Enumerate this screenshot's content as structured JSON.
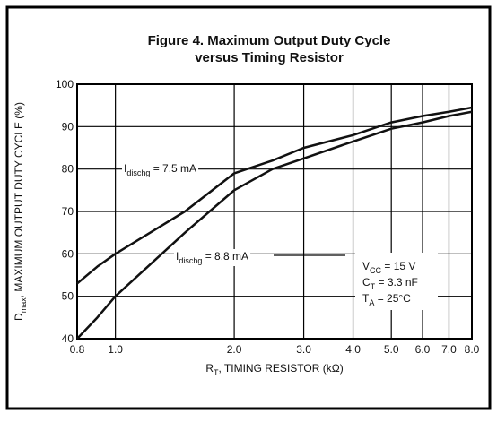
{
  "chart_data": {
    "type": "line",
    "title": [
      "Figure 4. Maximum Output Duty Cycle",
      "versus Timing Resistor"
    ],
    "y_label": {
      "base": "D",
      "sub": "max",
      "rest": ", MAXIMUM OUTPUT DUTY CYCLE (%)"
    },
    "x_label": {
      "base": "R",
      "sub": "T",
      "rest": ", TIMING RESISTOR (kΩ)"
    },
    "x": [
      0.8,
      0.9,
      1.0,
      1.5,
      2.0,
      2.5,
      3.0,
      4.0,
      5.0,
      6.0,
      7.0,
      8.0
    ],
    "series": [
      {
        "color": "#111111",
        "values": [
          53,
          57,
          60,
          70,
          79,
          82,
          85,
          88,
          91,
          92.5,
          93.5,
          94.5
        ]
      },
      {
        "color": "#111111",
        "values": [
          40,
          45,
          50,
          65,
          75,
          80,
          82.5,
          86.5,
          89.5,
          91,
          92.5,
          93.5
        ]
      }
    ],
    "series_labels": [
      {
        "base": "I",
        "sub": "dischg",
        "rest": " = 7.5 mA"
      },
      {
        "base": "I",
        "sub": "dischg",
        "rest": " = 8.8 mA"
      }
    ],
    "conditions": [
      {
        "base": "V",
        "sub": "CC",
        "rest": " = 15 V"
      },
      {
        "base": "C",
        "sub": "T",
        "rest": " = 3.3 nF"
      },
      {
        "base": "T",
        "sub": "A",
        "rest": " = 25°C"
      }
    ],
    "xscale": "log",
    "xlim": [
      0.8,
      8.0
    ],
    "xticks": [
      0.8,
      {
        "value": 1,
        "label": "1.0"
      },
      {
        "value": 2,
        "label": "2.0"
      },
      {
        "value": 3,
        "label": "3.0"
      },
      {
        "value": 4,
        "label": "4.0"
      },
      {
        "value": 5,
        "label": "5.0"
      },
      {
        "value": 6,
        "label": "6.0"
      },
      {
        "value": 7,
        "label": "7.0"
      },
      {
        "value": 8,
        "label": "8.0"
      }
    ],
    "ylim": [
      40,
      100
    ],
    "yticks": [
      40,
      50,
      60,
      70,
      80,
      90,
      100
    ],
    "grid": true
  }
}
